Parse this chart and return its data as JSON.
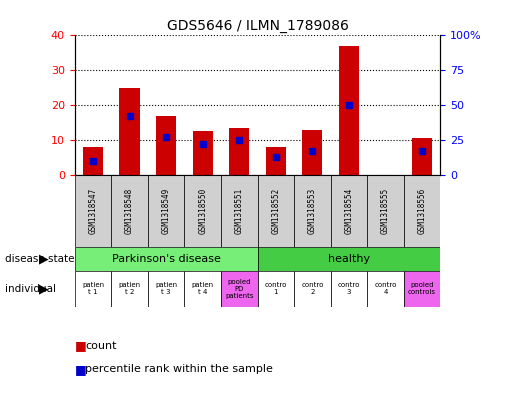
{
  "title": "GDS5646 / ILMN_1789086",
  "samples": [
    "GSM1318547",
    "GSM1318548",
    "GSM1318549",
    "GSM1318550",
    "GSM1318551",
    "GSM1318552",
    "GSM1318553",
    "GSM1318554",
    "GSM1318555",
    "GSM1318556"
  ],
  "count_values": [
    8,
    25,
    17,
    12.5,
    13.5,
    8,
    13,
    37,
    0,
    10.5
  ],
  "percentile_values": [
    10,
    42,
    27,
    22,
    25,
    13,
    17,
    50,
    0,
    17
  ],
  "ylim_left": [
    0,
    40
  ],
  "ylim_right": [
    0,
    100
  ],
  "yticks_left": [
    0,
    10,
    20,
    30,
    40
  ],
  "yticks_right": [
    0,
    25,
    50,
    75,
    100
  ],
  "yticklabels_right": [
    "0",
    "25",
    "50",
    "75",
    "100%"
  ],
  "bar_color": "#cc0000",
  "percentile_color": "#0000cc",
  "bg_color": "#ffffff",
  "sample_label_bg": "#d0d0d0",
  "pd_color": "#77ee77",
  "healthy_color": "#44cc44",
  "pooled_color": "#ee66ee",
  "white_color": "#ffffff",
  "count_label": "count",
  "percentile_label": "percentile rank within the sample",
  "disease_state_label": "disease state",
  "individual_label": "individual",
  "pd_label": "Parkinson's disease",
  "healthy_label": "healthy",
  "individuals": [
    {
      "label": "patien\nt 1",
      "col": 0,
      "pooled": false
    },
    {
      "label": "patien\nt 2",
      "col": 1,
      "pooled": false
    },
    {
      "label": "patien\nt 3",
      "col": 2,
      "pooled": false
    },
    {
      "label": "patien\nt 4",
      "col": 3,
      "pooled": false
    },
    {
      "label": "pooled\nPD\npatients",
      "col": 4,
      "pooled": true
    },
    {
      "label": "contro\n1",
      "col": 5,
      "pooled": false
    },
    {
      "label": "contro\n2",
      "col": 6,
      "pooled": false
    },
    {
      "label": "contro\n3",
      "col": 7,
      "pooled": false
    },
    {
      "label": "contro\n4",
      "col": 8,
      "pooled": false
    },
    {
      "label": "pooled\ncontrols",
      "col": 9,
      "pooled": true
    }
  ]
}
